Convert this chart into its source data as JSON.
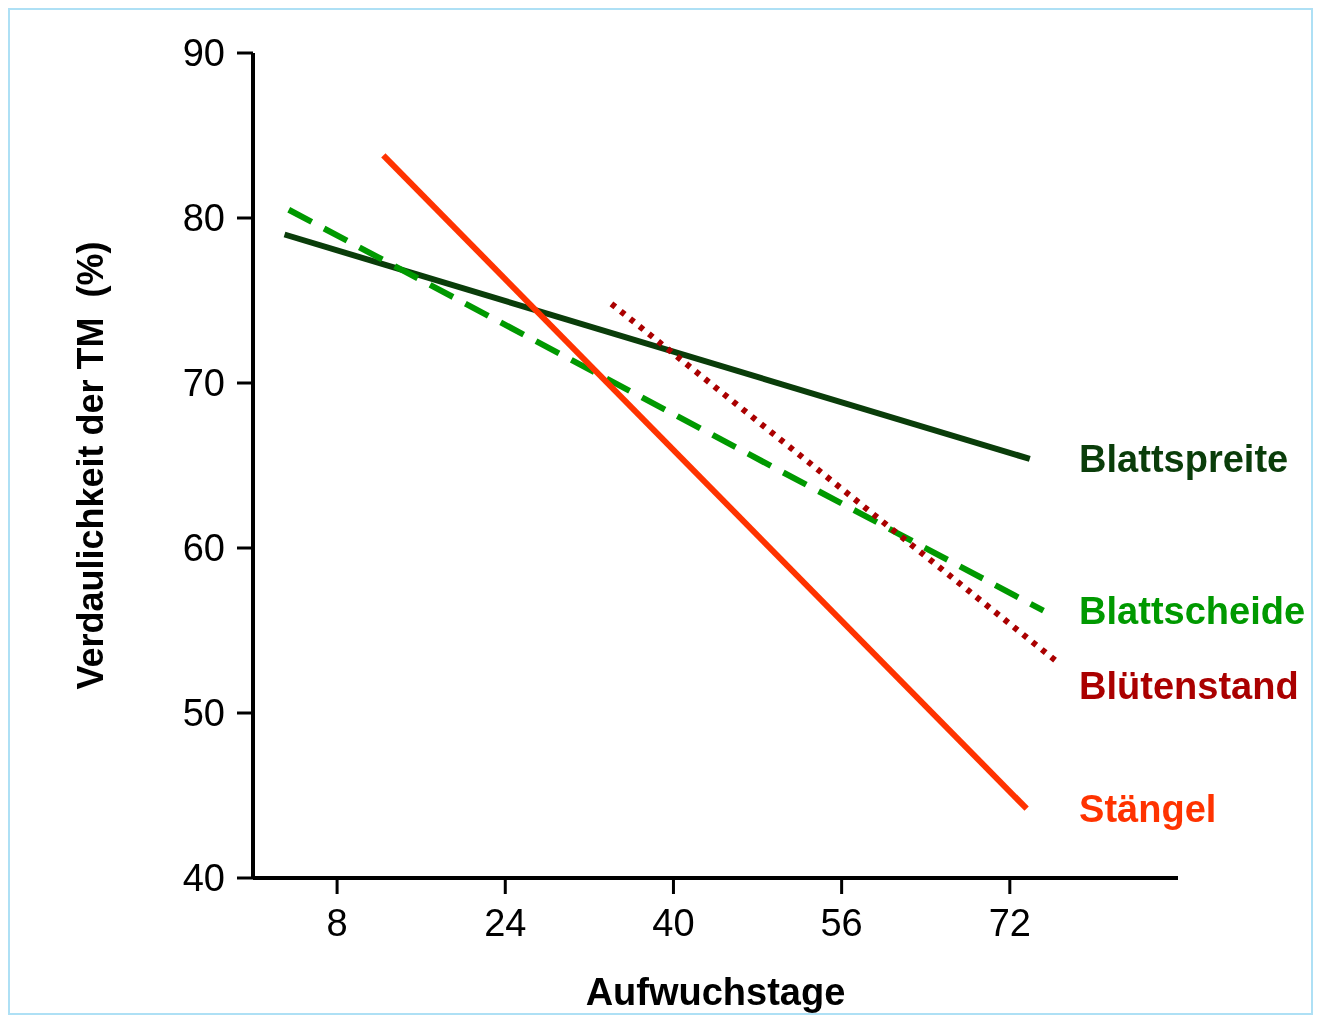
{
  "chart_data": {
    "type": "line",
    "xlabel": "Aufwuchstage",
    "ylabel": "Verdaulichkeit der TM  (%)",
    "xlim": [
      0,
      88
    ],
    "xticks": [
      8,
      24,
      40,
      56,
      72
    ],
    "ylim": [
      40,
      90
    ],
    "yticks": [
      40,
      50,
      60,
      70,
      80,
      90
    ],
    "grid": false,
    "marker": "none",
    "series": [
      {
        "name": "Blattspreite",
        "color": "#0a3d0a",
        "line_style": "solid",
        "x": [
          3,
          73.9
        ],
        "values": [
          79.0,
          65.4
        ]
      },
      {
        "name": "Blattscheide",
        "color": "#009900",
        "line_style": "dashed",
        "x": [
          3.4,
          75.2
        ],
        "values": [
          80.5,
          56.2
        ]
      },
      {
        "name": "Blütenstand",
        "color": "#aa0000",
        "line_style": "dotted",
        "x": [
          34.1,
          76.5
        ],
        "values": [
          74.8,
          53.1
        ]
      },
      {
        "name": "Stängel",
        "color": "#ff3300",
        "line_style": "solid",
        "x": [
          12.4,
          73.6
        ],
        "values": [
          83.8,
          44.2
        ]
      }
    ]
  }
}
